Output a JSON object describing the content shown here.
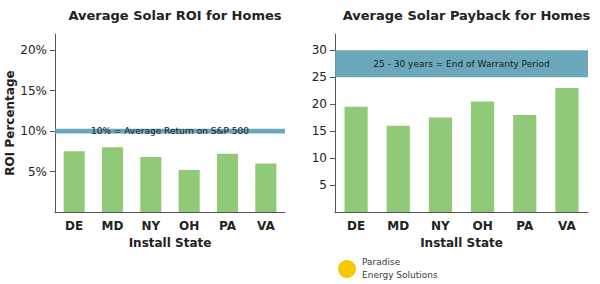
{
  "chart_data": [
    {
      "type": "bar",
      "title": "Average Solar ROI for Homes",
      "xlabel": "Install State",
      "ylabel": "ROI Percentage",
      "categories": [
        "DE",
        "MD",
        "NY",
        "OH",
        "PA",
        "VA"
      ],
      "values": [
        7.5,
        8.0,
        6.8,
        5.2,
        7.2,
        6.0
      ],
      "color": "#90c978",
      "ylim": [
        0,
        22
      ],
      "yticks": [
        {
          "value": 5,
          "label": "5%"
        },
        {
          "value": 10,
          "label": "10%"
        },
        {
          "value": 15,
          "label": "15%"
        },
        {
          "value": 20,
          "label": "20%"
        }
      ],
      "grid": false,
      "annotations": [
        {
          "text": "10% = Average Return on S&P 500",
          "band": [
            9.7,
            10.3
          ],
          "color": "#5b9eb5"
        }
      ]
    },
    {
      "type": "bar",
      "title": "Average Solar Payback for Homes",
      "xlabel": "Install State",
      "categories": [
        "DE",
        "MD",
        "NY",
        "OH",
        "PA",
        "VA"
      ],
      "values": [
        19.5,
        16.0,
        17.5,
        20.5,
        18.0,
        23.0
      ],
      "color": "#90c978",
      "ylim": [
        0,
        33
      ],
      "yticks": [
        5,
        10,
        15,
        20,
        25,
        30
      ],
      "grid": false,
      "annotations": [
        {
          "text": "25 - 30 years = End of Warranty Period",
          "band": [
            25.0,
            30.0
          ],
          "color": "#5b9eb5"
        }
      ]
    }
  ],
  "annotations": [
    {
      "text": "Paradise"
    },
    {
      "text": "Energy Solutions"
    }
  ]
}
